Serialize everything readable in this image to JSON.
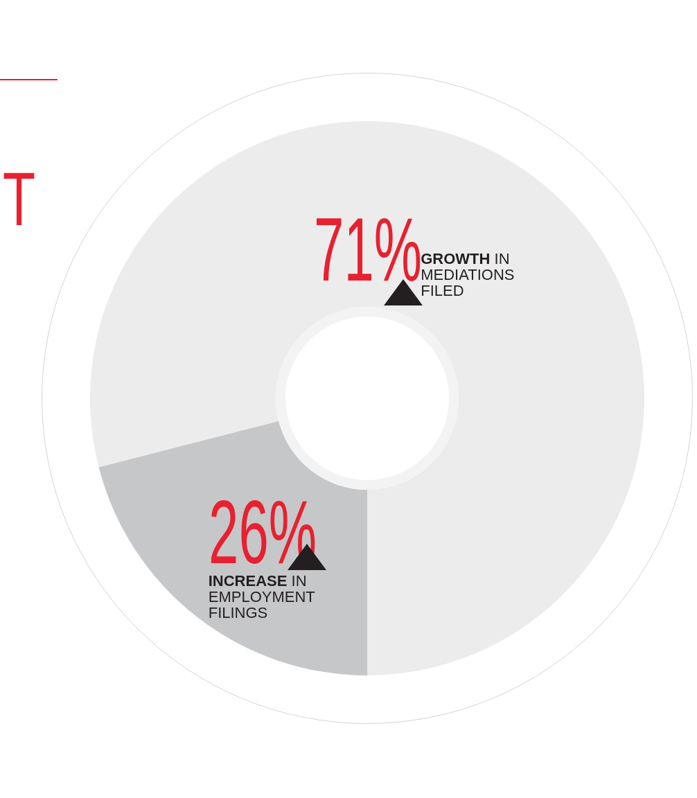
{
  "chart_data": {
    "type": "donut",
    "categories": [
      null,
      null
    ],
    "values": [
      21,
      79
    ],
    "colors": [
      "#c6c7c9",
      "#ececec"
    ],
    "annotations": [
      "T",
      "71%",
      "GROWTH IN MEDIATIONS FILED",
      "26%",
      "INCREASE IN EMPLOYMENT FILINGS"
    ]
  }
}
